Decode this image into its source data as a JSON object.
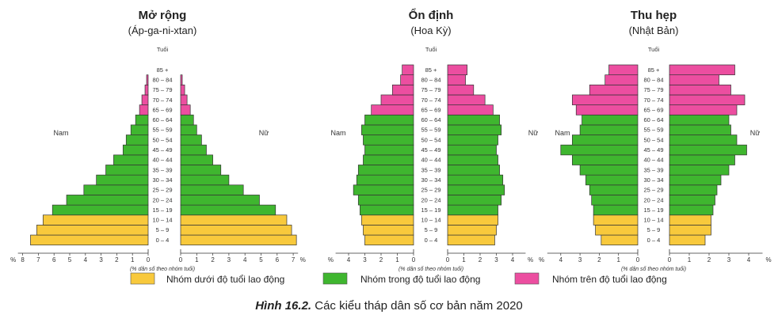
{
  "chart_data": [
    {
      "type": "bar",
      "title": "Mở rộng",
      "subtitle": "(Áp-ga-ni-xtan)",
      "age_label": "Tuổi",
      "male_label": "Nam",
      "female_label": "Nữ",
      "xlabel": "(% dân số theo nhóm tuổi)",
      "unit": "%",
      "male_ticks": [
        8,
        7,
        6,
        5,
        4,
        3,
        2,
        1,
        0
      ],
      "female_ticks": [
        0,
        1,
        2,
        3,
        4,
        5,
        6,
        7
      ],
      "categories": [
        "0 – 4",
        "5 – 9",
        "10 – 14",
        "15 – 19",
        "20 – 24",
        "25 – 29",
        "30 – 34",
        "35 – 39",
        "40 – 44",
        "45 – 49",
        "50 – 54",
        "55 – 59",
        "60 – 64",
        "65 – 69",
        "70 – 74",
        "75 – 79",
        "80 – 84",
        "85 +"
      ],
      "series": [
        {
          "name": "Nam",
          "values": [
            7.5,
            7.1,
            6.7,
            6.1,
            5.2,
            4.1,
            3.3,
            2.7,
            2.2,
            1.6,
            1.4,
            1.1,
            0.8,
            0.55,
            0.4,
            0.2,
            0.1,
            0
          ]
        },
        {
          "name": "Nữ",
          "values": [
            7.2,
            6.9,
            6.6,
            5.9,
            4.9,
            3.9,
            3.0,
            2.5,
            2.0,
            1.6,
            1.3,
            1.0,
            0.8,
            0.6,
            0.4,
            0.25,
            0.1,
            0
          ]
        }
      ]
    },
    {
      "type": "bar",
      "title": "Ổn định",
      "subtitle": "(Hoa Kỳ)",
      "age_label": "Tuổi",
      "male_label": "Nam",
      "female_label": "Nữ",
      "xlabel": "(% dân số theo nhóm tuổi)",
      "unit": "%",
      "male_ticks": [
        4,
        3,
        2,
        1,
        0
      ],
      "female_ticks": [
        0,
        1,
        2,
        3,
        4
      ],
      "categories": [
        "0 – 4",
        "5 – 9",
        "10 – 14",
        "15 – 19",
        "20 – 24",
        "25 – 29",
        "30 – 34",
        "35 – 39",
        "40 – 44",
        "45 – 49",
        "50 – 54",
        "55 – 59",
        "60 – 64",
        "65 – 69",
        "70 – 74",
        "75 – 79",
        "80 – 84",
        "85 +"
      ],
      "series": [
        {
          "name": "Nam",
          "values": [
            3.0,
            3.1,
            3.2,
            3.3,
            3.4,
            3.7,
            3.5,
            3.4,
            3.1,
            3.0,
            3.1,
            3.2,
            3.0,
            2.6,
            2.0,
            1.3,
            0.8,
            0.7
          ]
        },
        {
          "name": "Nữ",
          "values": [
            2.9,
            3.0,
            3.1,
            3.1,
            3.3,
            3.5,
            3.4,
            3.2,
            3.1,
            3.0,
            3.1,
            3.3,
            3.2,
            2.8,
            2.3,
            1.6,
            1.1,
            1.2
          ]
        }
      ]
    },
    {
      "type": "bar",
      "title": "Thu hẹp",
      "subtitle": "(Nhật Bản)",
      "age_label": "Tuổi",
      "male_label": "Nam",
      "female_label": "Nữ",
      "xlabel": "(% dân số theo nhóm tuổi)",
      "unit": "%",
      "male_ticks": [
        4,
        3,
        2,
        1,
        0
      ],
      "female_ticks": [
        0,
        1,
        2,
        3,
        4
      ],
      "categories": [
        "0 – 4",
        "5 – 9",
        "10 – 14",
        "15 – 19",
        "20 – 24",
        "25 – 29",
        "30 – 34",
        "35 – 39",
        "40 – 44",
        "45 – 49",
        "50 – 54",
        "55 – 59",
        "60 – 64",
        "65 – 69",
        "70 – 74",
        "75 – 79",
        "80 – 84",
        "85 +"
      ],
      "series": [
        {
          "name": "Nam",
          "values": [
            1.9,
            2.2,
            2.3,
            2.3,
            2.4,
            2.5,
            2.7,
            3.0,
            3.4,
            4.0,
            3.4,
            3.0,
            2.9,
            3.2,
            3.4,
            2.5,
            1.7,
            1.5
          ]
        },
        {
          "name": "Nữ",
          "values": [
            1.8,
            2.1,
            2.1,
            2.2,
            2.3,
            2.4,
            2.6,
            3.0,
            3.3,
            3.9,
            3.4,
            3.1,
            3.0,
            3.4,
            3.8,
            3.1,
            2.5,
            3.3
          ]
        }
      ]
    }
  ],
  "group_colors": {
    "young": "#f8c93c",
    "working": "#3fb62f",
    "old": "#ec4ea0"
  },
  "legend": [
    {
      "label": "Nhóm dưới độ tuổi lao động",
      "color": "#f8c93c"
    },
    {
      "label": "Nhóm trong độ tuổi lao động",
      "color": "#3fb62f"
    },
    {
      "label": "Nhóm trên độ tuổi lao động",
      "color": "#ec4ea0"
    }
  ],
  "caption": {
    "label": "Hình 16.2.",
    "text": " Các kiểu tháp dân số cơ bản năm 2020"
  }
}
